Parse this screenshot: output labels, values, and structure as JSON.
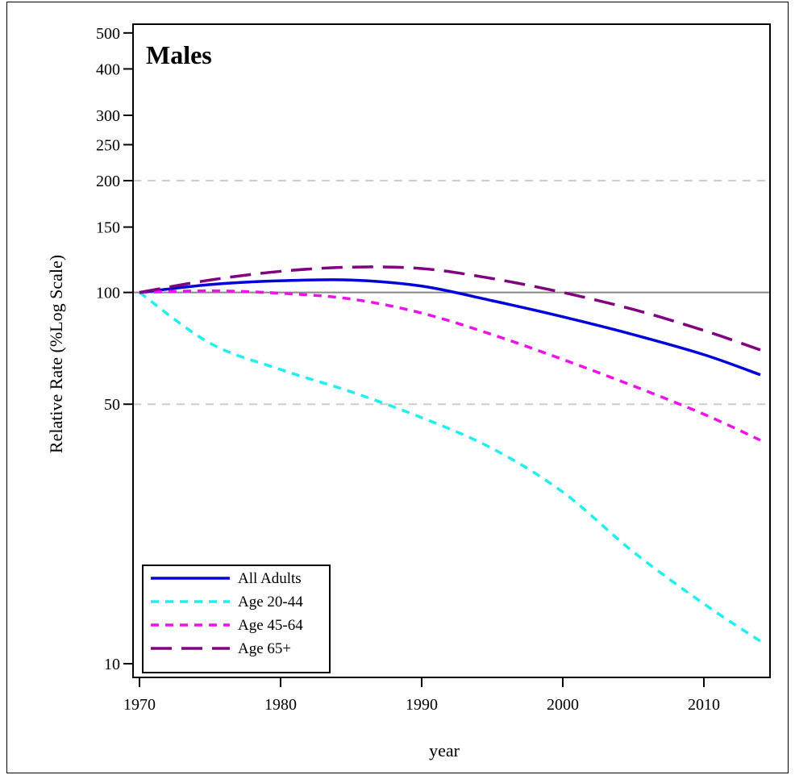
{
  "chart_data": {
    "type": "line",
    "title": "Males",
    "xlabel": "year",
    "ylabel": "Relative Rate (%Log Scale)",
    "xlim": [
      1970,
      2014
    ],
    "ylim": [
      10,
      520
    ],
    "yscale": "log",
    "x_ticks": [
      1970,
      1980,
      1990,
      2000,
      2010
    ],
    "y_ticks": [
      10,
      50,
      100,
      150,
      200,
      250,
      300,
      400,
      500
    ],
    "reference_lines": [
      {
        "y": 100,
        "style": "solid",
        "color": "#888888"
      },
      {
        "y": 200,
        "style": "dashed",
        "color": "#cccccc"
      },
      {
        "y": 50,
        "style": "dashed",
        "color": "#cccccc"
      }
    ],
    "grid": false,
    "legend_position": "bottom-left",
    "x": [
      1970,
      1975,
      1980,
      1985,
      1990,
      1995,
      2000,
      2005,
      2010,
      2014
    ],
    "series": [
      {
        "name": "All Adults",
        "color": "#0000dd",
        "dash": "solid",
        "values": [
          100,
          105,
          107.5,
          108,
          104,
          95,
          86,
          77,
          68,
          60
        ]
      },
      {
        "name": "Age 20-44",
        "color": "#22eeee",
        "dash": "short",
        "values": [
          100,
          73,
          62,
          54,
          46,
          38,
          29,
          20,
          14.5,
          11.5
        ]
      },
      {
        "name": "Age 45-64",
        "color": "#ee11ee",
        "dash": "short",
        "values": [
          100,
          101,
          99.5,
          96,
          88,
          77,
          66,
          56,
          47,
          40
        ]
      },
      {
        "name": "Age 65+",
        "color": "#800080",
        "dash": "long",
        "values": [
          100,
          108,
          114,
          117,
          116,
          109,
          100,
          90,
          79,
          70
        ]
      }
    ]
  }
}
